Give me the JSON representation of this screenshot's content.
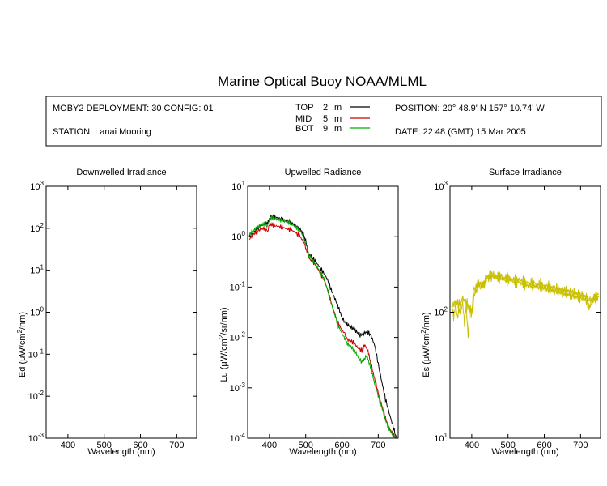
{
  "header": {
    "title": "Marine Optical Buoy NOAA/MLML",
    "deployment": "MOBY2 DEPLOYMENT: 30 CONFIG: 01",
    "station": "STATION: Lanai Mooring",
    "position": "POSITION: 20° 48.9' N   157° 10.74' W",
    "date": "DATE: 22:48 (GMT) 15 Mar 2005",
    "legend": [
      {
        "name": "TOP",
        "depth": "2",
        "unit": "m",
        "color": "#000000"
      },
      {
        "name": "MID",
        "depth": "5",
        "unit": "m",
        "color": "#cc0000"
      },
      {
        "name": "BOT",
        "depth": "9",
        "unit": "m",
        "color": "#00aa00"
      }
    ]
  },
  "chart_data": [
    {
      "type": "line",
      "title": "Downwelled Irradiance",
      "xlabel": "Wavelength (nm)",
      "ylabel_prefix": "Ed  (μW/cm",
      "ylabel_mid": "/nm)",
      "ylabel_sup": "2",
      "xlim": [
        340,
        755
      ],
      "xticks": [
        "400",
        "500",
        "600",
        "700"
      ],
      "xtick_values": [
        400,
        500,
        600,
        700
      ],
      "ylim": [
        -3,
        3
      ],
      "log_y": true,
      "yticks": [
        {
          "exp": -3,
          "base": "10",
          "power": "-3"
        },
        {
          "exp": -2,
          "base": "10",
          "power": "-2"
        },
        {
          "exp": -1,
          "base": "10",
          "power": "-1"
        },
        {
          "exp": 0,
          "base": "10",
          "power": "0"
        },
        {
          "exp": 1,
          "base": "10",
          "power": "1"
        },
        {
          "exp": 2,
          "base": "10",
          "power": "2"
        },
        {
          "exp": 3,
          "base": "10",
          "power": "3"
        }
      ],
      "series": []
    },
    {
      "type": "line",
      "title": "Upwelled Radiance",
      "xlabel": "Wavelength (nm)",
      "ylabel_prefix": "Lu  (μW/cm",
      "ylabel_mid": "/sr/nm)",
      "ylabel_sup": "2",
      "xlim": [
        340,
        755
      ],
      "xticks": [
        "400",
        "500",
        "600",
        "700"
      ],
      "xtick_values": [
        400,
        500,
        600,
        700
      ],
      "ylim": [
        -4,
        1
      ],
      "log_y": true,
      "yticks": [
        {
          "exp": -4,
          "base": "10",
          "power": "-4"
        },
        {
          "exp": -3,
          "base": "10",
          "power": "-3"
        },
        {
          "exp": -2,
          "base": "10",
          "power": "-2"
        },
        {
          "exp": -1,
          "base": "10",
          "power": "-1"
        },
        {
          "exp": 0,
          "base": "10",
          "power": "0"
        },
        {
          "exp": 1,
          "base": "10",
          "power": "1"
        }
      ],
      "series": [
        {
          "color": "#000000",
          "x": [
            345,
            355,
            365,
            375,
            385,
            395,
            400,
            405,
            415,
            425,
            435,
            445,
            455,
            465,
            475,
            485,
            495,
            500,
            505,
            510,
            515,
            520,
            530,
            540,
            550,
            560,
            570,
            580,
            590,
            600,
            610,
            620,
            630,
            640,
            650,
            660,
            670,
            680,
            690,
            700,
            710,
            720,
            730,
            740,
            750
          ],
          "y": [
            1.0,
            1.2,
            1.4,
            1.6,
            1.75,
            1.85,
            2.3,
            2.5,
            2.45,
            2.35,
            2.2,
            2.1,
            2.0,
            1.8,
            1.6,
            1.4,
            1.1,
            0.8,
            0.55,
            0.42,
            0.4,
            0.37,
            0.3,
            0.24,
            0.19,
            0.14,
            0.09,
            0.06,
            0.04,
            0.025,
            0.019,
            0.017,
            0.015,
            0.013,
            0.011,
            0.012,
            0.013,
            0.011,
            0.007,
            0.003,
            0.0013,
            0.0006,
            0.00032,
            0.00018,
            0.0001
          ]
        },
        {
          "color": "#cc0000",
          "x": [
            345,
            355,
            365,
            375,
            385,
            395,
            400,
            405,
            415,
            425,
            435,
            445,
            455,
            465,
            475,
            485,
            495,
            500,
            505,
            510,
            515,
            520,
            530,
            540,
            550,
            560,
            570,
            580,
            590,
            600,
            608,
            615,
            625,
            635,
            645,
            655,
            660,
            665,
            670,
            675,
            680,
            690,
            700,
            710,
            720,
            730,
            740,
            750
          ],
          "y": [
            0.9,
            1.1,
            1.25,
            1.4,
            1.45,
            1.3,
            1.7,
            1.75,
            1.65,
            1.6,
            1.55,
            1.45,
            1.4,
            1.3,
            1.15,
            1.0,
            0.75,
            0.6,
            0.5,
            0.37,
            0.35,
            0.32,
            0.25,
            0.19,
            0.14,
            0.09,
            0.05,
            0.03,
            0.019,
            0.014,
            0.012,
            0.009,
            0.0085,
            0.0075,
            0.006,
            0.0055,
            0.0065,
            0.0068,
            0.0058,
            0.0042,
            0.003,
            0.0015,
            0.0008,
            0.00045,
            0.00025,
            0.00016,
            0.00012,
            0.0001
          ]
        },
        {
          "color": "#00aa00",
          "x": [
            345,
            355,
            365,
            375,
            385,
            395,
            400,
            405,
            415,
            425,
            435,
            445,
            455,
            465,
            475,
            485,
            495,
            500,
            505,
            510,
            515,
            520,
            530,
            540,
            550,
            560,
            570,
            580,
            590,
            600,
            608,
            615,
            625,
            635,
            645,
            655,
            660,
            665,
            670,
            675,
            680,
            690,
            700,
            710,
            720,
            730,
            740,
            750
          ],
          "y": [
            1.1,
            1.3,
            1.5,
            1.7,
            1.8,
            1.6,
            2.2,
            2.35,
            2.3,
            2.2,
            2.1,
            2.0,
            1.9,
            1.7,
            1.5,
            1.3,
            0.95,
            0.7,
            0.55,
            0.4,
            0.38,
            0.34,
            0.26,
            0.2,
            0.15,
            0.09,
            0.05,
            0.028,
            0.017,
            0.012,
            0.0095,
            0.0075,
            0.0065,
            0.0055,
            0.004,
            0.0032,
            0.0036,
            0.0042,
            0.004,
            0.0032,
            0.0024,
            0.0012,
            0.0007,
            0.0004,
            0.00023,
            0.00015,
            0.00012,
            0.0001
          ]
        }
      ]
    },
    {
      "type": "line",
      "title": "Surface Irradiance",
      "xlabel": "Wavelength (nm)",
      "ylabel_prefix": "Es  (μW/cm",
      "ylabel_mid": "/nm)",
      "ylabel_sup": "2",
      "xlim": [
        340,
        755
      ],
      "xticks": [
        "400",
        "500",
        "600",
        "700"
      ],
      "xtick_values": [
        400,
        500,
        600,
        700
      ],
      "ylim": [
        1,
        3
      ],
      "log_y": true,
      "yticks": [
        {
          "exp": 1,
          "base": "10",
          "power": "1"
        },
        {
          "exp": 2,
          "base": "10",
          "power": "2"
        },
        {
          "exp": 3,
          "base": "10",
          "power": "3"
        }
      ],
      "series": [
        {
          "color": "#c8c000",
          "x": [
            345,
            350,
            355,
            360,
            365,
            370,
            375,
            380,
            385,
            390,
            395,
            400,
            405,
            410,
            415,
            420,
            425,
            430,
            435,
            440,
            445,
            450,
            460,
            470,
            480,
            490,
            500,
            510,
            520,
            530,
            540,
            550,
            560,
            570,
            580,
            590,
            600,
            610,
            620,
            630,
            640,
            650,
            660,
            670,
            680,
            690,
            700,
            710,
            720,
            725,
            730,
            735,
            740,
            750
          ],
          "y": [
            105,
            92,
            118,
            88,
            110,
            95,
            125,
            80,
            115,
            65,
            112,
            95,
            150,
            148,
            160,
            165,
            162,
            158,
            172,
            180,
            190,
            195,
            192,
            185,
            188,
            178,
            182,
            176,
            172,
            175,
            168,
            165,
            162,
            164,
            158,
            160,
            155,
            153,
            150,
            148,
            145,
            142,
            140,
            138,
            135,
            132,
            130,
            128,
            120,
            105,
            118,
            125,
            128,
            132
          ]
        },
        {
          "color": "#c8c000",
          "x": [
            345,
            355,
            365,
            375,
            385,
            395,
            400,
            410,
            420,
            430,
            440,
            450,
            460,
            470,
            480,
            490,
            500,
            510,
            520,
            530,
            540,
            550,
            560,
            570,
            580,
            590,
            600,
            610,
            620,
            630,
            640,
            650,
            660,
            670,
            680,
            690,
            700,
            710,
            720,
            730,
            740,
            750
          ],
          "y": [
            110,
            122,
            115,
            130,
            118,
            108,
            100,
            155,
            170,
            165,
            185,
            200,
            198,
            192,
            194,
            186,
            190,
            184,
            180,
            182,
            176,
            172,
            170,
            172,
            166,
            168,
            163,
            160,
            158,
            156,
            152,
            150,
            148,
            146,
            143,
            140,
            138,
            135,
            128,
            124,
            132,
            138
          ]
        }
      ]
    }
  ]
}
